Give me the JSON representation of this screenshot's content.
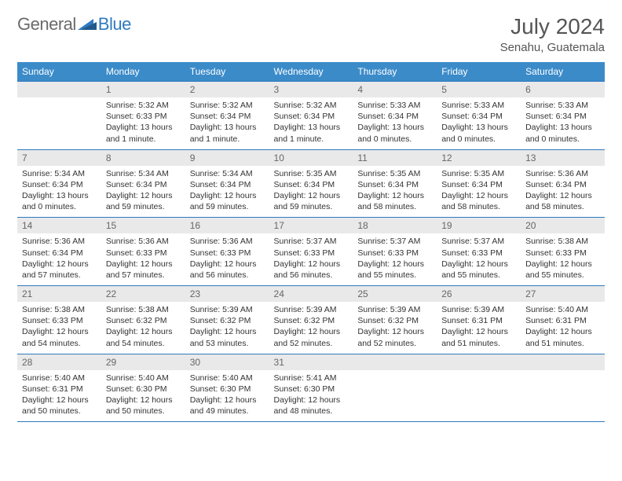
{
  "brand": {
    "name_part1": "General",
    "name_part2": "Blue"
  },
  "title": "July 2024",
  "location": "Senahu, Guatemala",
  "colors": {
    "header_bg": "#3b8bc9",
    "header_text": "#ffffff",
    "row_divider": "#2f7ac0",
    "daynum_bg": "#e9e9e9",
    "daynum_text": "#666666",
    "body_text": "#333333",
    "brand_gray": "#6a6a6a",
    "brand_blue": "#2f7ac0",
    "page_bg": "#ffffff"
  },
  "weekdays": [
    "Sunday",
    "Monday",
    "Tuesday",
    "Wednesday",
    "Thursday",
    "Friday",
    "Saturday"
  ],
  "weeks": [
    [
      null,
      {
        "day": "1",
        "sunrise": "Sunrise: 5:32 AM",
        "sunset": "Sunset: 6:33 PM",
        "daylight": "Daylight: 13 hours and 1 minute."
      },
      {
        "day": "2",
        "sunrise": "Sunrise: 5:32 AM",
        "sunset": "Sunset: 6:34 PM",
        "daylight": "Daylight: 13 hours and 1 minute."
      },
      {
        "day": "3",
        "sunrise": "Sunrise: 5:32 AM",
        "sunset": "Sunset: 6:34 PM",
        "daylight": "Daylight: 13 hours and 1 minute."
      },
      {
        "day": "4",
        "sunrise": "Sunrise: 5:33 AM",
        "sunset": "Sunset: 6:34 PM",
        "daylight": "Daylight: 13 hours and 0 minutes."
      },
      {
        "day": "5",
        "sunrise": "Sunrise: 5:33 AM",
        "sunset": "Sunset: 6:34 PM",
        "daylight": "Daylight: 13 hours and 0 minutes."
      },
      {
        "day": "6",
        "sunrise": "Sunrise: 5:33 AM",
        "sunset": "Sunset: 6:34 PM",
        "daylight": "Daylight: 13 hours and 0 minutes."
      }
    ],
    [
      {
        "day": "7",
        "sunrise": "Sunrise: 5:34 AM",
        "sunset": "Sunset: 6:34 PM",
        "daylight": "Daylight: 13 hours and 0 minutes."
      },
      {
        "day": "8",
        "sunrise": "Sunrise: 5:34 AM",
        "sunset": "Sunset: 6:34 PM",
        "daylight": "Daylight: 12 hours and 59 minutes."
      },
      {
        "day": "9",
        "sunrise": "Sunrise: 5:34 AM",
        "sunset": "Sunset: 6:34 PM",
        "daylight": "Daylight: 12 hours and 59 minutes."
      },
      {
        "day": "10",
        "sunrise": "Sunrise: 5:35 AM",
        "sunset": "Sunset: 6:34 PM",
        "daylight": "Daylight: 12 hours and 59 minutes."
      },
      {
        "day": "11",
        "sunrise": "Sunrise: 5:35 AM",
        "sunset": "Sunset: 6:34 PM",
        "daylight": "Daylight: 12 hours and 58 minutes."
      },
      {
        "day": "12",
        "sunrise": "Sunrise: 5:35 AM",
        "sunset": "Sunset: 6:34 PM",
        "daylight": "Daylight: 12 hours and 58 minutes."
      },
      {
        "day": "13",
        "sunrise": "Sunrise: 5:36 AM",
        "sunset": "Sunset: 6:34 PM",
        "daylight": "Daylight: 12 hours and 58 minutes."
      }
    ],
    [
      {
        "day": "14",
        "sunrise": "Sunrise: 5:36 AM",
        "sunset": "Sunset: 6:34 PM",
        "daylight": "Daylight: 12 hours and 57 minutes."
      },
      {
        "day": "15",
        "sunrise": "Sunrise: 5:36 AM",
        "sunset": "Sunset: 6:33 PM",
        "daylight": "Daylight: 12 hours and 57 minutes."
      },
      {
        "day": "16",
        "sunrise": "Sunrise: 5:36 AM",
        "sunset": "Sunset: 6:33 PM",
        "daylight": "Daylight: 12 hours and 56 minutes."
      },
      {
        "day": "17",
        "sunrise": "Sunrise: 5:37 AM",
        "sunset": "Sunset: 6:33 PM",
        "daylight": "Daylight: 12 hours and 56 minutes."
      },
      {
        "day": "18",
        "sunrise": "Sunrise: 5:37 AM",
        "sunset": "Sunset: 6:33 PM",
        "daylight": "Daylight: 12 hours and 55 minutes."
      },
      {
        "day": "19",
        "sunrise": "Sunrise: 5:37 AM",
        "sunset": "Sunset: 6:33 PM",
        "daylight": "Daylight: 12 hours and 55 minutes."
      },
      {
        "day": "20",
        "sunrise": "Sunrise: 5:38 AM",
        "sunset": "Sunset: 6:33 PM",
        "daylight": "Daylight: 12 hours and 55 minutes."
      }
    ],
    [
      {
        "day": "21",
        "sunrise": "Sunrise: 5:38 AM",
        "sunset": "Sunset: 6:33 PM",
        "daylight": "Daylight: 12 hours and 54 minutes."
      },
      {
        "day": "22",
        "sunrise": "Sunrise: 5:38 AM",
        "sunset": "Sunset: 6:32 PM",
        "daylight": "Daylight: 12 hours and 54 minutes."
      },
      {
        "day": "23",
        "sunrise": "Sunrise: 5:39 AM",
        "sunset": "Sunset: 6:32 PM",
        "daylight": "Daylight: 12 hours and 53 minutes."
      },
      {
        "day": "24",
        "sunrise": "Sunrise: 5:39 AM",
        "sunset": "Sunset: 6:32 PM",
        "daylight": "Daylight: 12 hours and 52 minutes."
      },
      {
        "day": "25",
        "sunrise": "Sunrise: 5:39 AM",
        "sunset": "Sunset: 6:32 PM",
        "daylight": "Daylight: 12 hours and 52 minutes."
      },
      {
        "day": "26",
        "sunrise": "Sunrise: 5:39 AM",
        "sunset": "Sunset: 6:31 PM",
        "daylight": "Daylight: 12 hours and 51 minutes."
      },
      {
        "day": "27",
        "sunrise": "Sunrise: 5:40 AM",
        "sunset": "Sunset: 6:31 PM",
        "daylight": "Daylight: 12 hours and 51 minutes."
      }
    ],
    [
      {
        "day": "28",
        "sunrise": "Sunrise: 5:40 AM",
        "sunset": "Sunset: 6:31 PM",
        "daylight": "Daylight: 12 hours and 50 minutes."
      },
      {
        "day": "29",
        "sunrise": "Sunrise: 5:40 AM",
        "sunset": "Sunset: 6:30 PM",
        "daylight": "Daylight: 12 hours and 50 minutes."
      },
      {
        "day": "30",
        "sunrise": "Sunrise: 5:40 AM",
        "sunset": "Sunset: 6:30 PM",
        "daylight": "Daylight: 12 hours and 49 minutes."
      },
      {
        "day": "31",
        "sunrise": "Sunrise: 5:41 AM",
        "sunset": "Sunset: 6:30 PM",
        "daylight": "Daylight: 12 hours and 48 minutes."
      },
      null,
      null,
      null
    ]
  ]
}
